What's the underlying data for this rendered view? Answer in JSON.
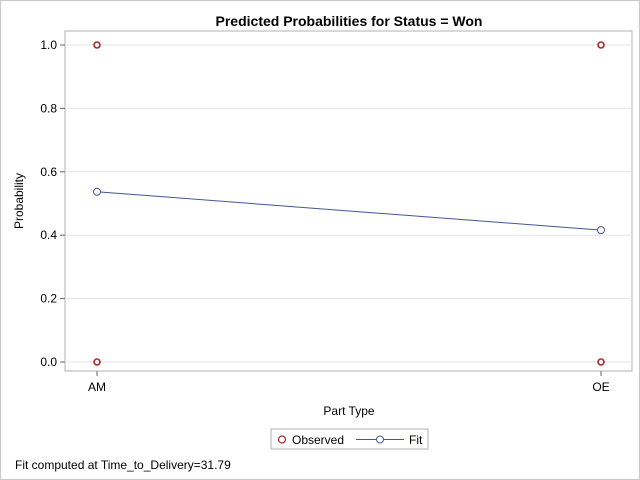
{
  "chart_data": {
    "type": "line",
    "title": "Predicted Probabilities for Status = Won",
    "xlabel": "Part Type",
    "ylabel": "Probability",
    "categories": [
      "AM",
      "OE"
    ],
    "ylim": [
      0,
      1
    ],
    "yticks": [
      "0.0",
      "0.2",
      "0.4",
      "0.6",
      "0.8",
      "1.0"
    ],
    "grid": true,
    "legend_position": "bottom",
    "series": [
      {
        "name": "Observed",
        "kind": "scatter",
        "marker": "circle",
        "color": "#a52a2a",
        "points": [
          {
            "x": "AM",
            "y": 1.0
          },
          {
            "x": "AM",
            "y": 0.0
          },
          {
            "x": "OE",
            "y": 1.0
          },
          {
            "x": "OE",
            "y": 0.0
          }
        ]
      },
      {
        "name": "Fit",
        "kind": "line",
        "marker": "circle",
        "color": "#445694",
        "points": [
          {
            "x": "AM",
            "y": 0.537
          },
          {
            "x": "OE",
            "y": 0.416
          }
        ]
      }
    ],
    "footnote": "Fit computed at Time_to_Delivery=31.79"
  }
}
